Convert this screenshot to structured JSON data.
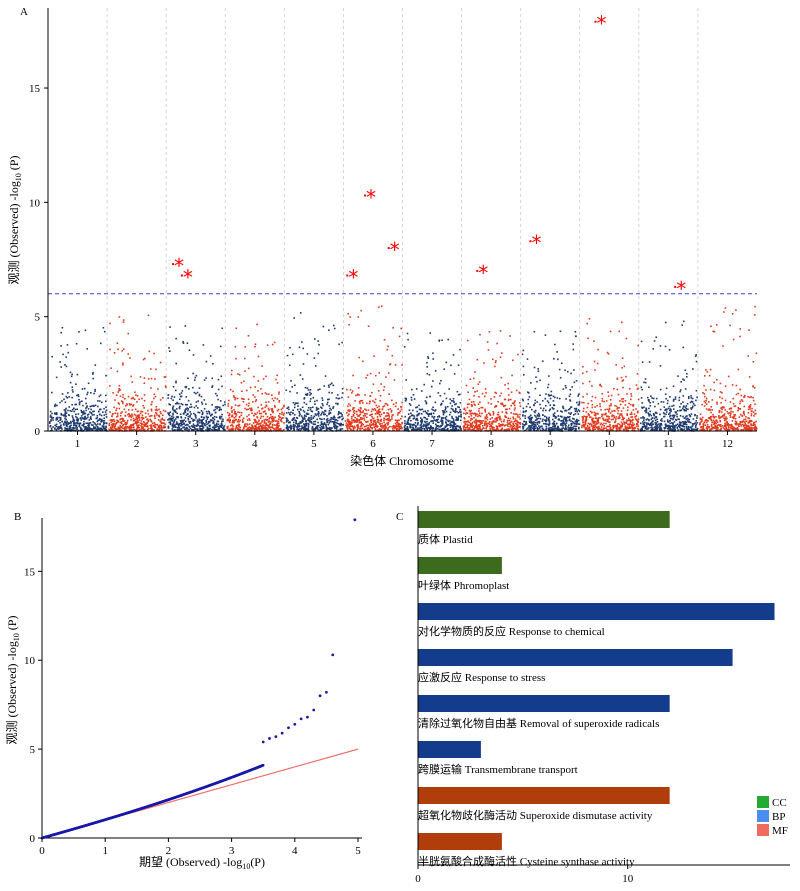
{
  "chart_data": [
    {
      "panel": "A",
      "type": "scatter",
      "subtype": "manhattan",
      "xlabel": "染色体 Chromosome",
      "ylabel": "观测 (Observed) -log10(P)",
      "ylim": [
        0,
        18.5
      ],
      "yticks": [
        0,
        5,
        10,
        15
      ],
      "categories": [
        "1",
        "2",
        "3",
        "4",
        "5",
        "6",
        "7",
        "8",
        "9",
        "10",
        "11",
        "12"
      ],
      "colors": {
        "odd": "#1f3a6e",
        "even": "#e03a1e",
        "threshold": "#3a3af0",
        "significant": "#ff0000"
      },
      "threshold": 6.0,
      "chromosome_peak_values": [
        4.6,
        5.1,
        4.7,
        4.7,
        5.3,
        5.6,
        4.3,
        4.4,
        4.4,
        5.3,
        4.8,
        5.6
      ],
      "significant_snps": [
        {
          "chromosome": "3",
          "value": 7.3
        },
        {
          "chromosome": "3",
          "value": 6.8
        },
        {
          "chromosome": "6",
          "value": 6.8
        },
        {
          "chromosome": "6",
          "value": 10.3
        },
        {
          "chromosome": "6",
          "value": 8.0
        },
        {
          "chromosome": "8",
          "value": 7.0
        },
        {
          "chromosome": "9",
          "value": 8.3
        },
        {
          "chromosome": "10",
          "value": 17.9
        },
        {
          "chromosome": "11",
          "value": 6.3
        }
      ]
    },
    {
      "panel": "B",
      "type": "scatter",
      "subtype": "qq",
      "xlabel": "期望 (Observed) -log10(P)",
      "ylabel": "观测 (Observed) -log10(P)",
      "xlim": [
        0,
        5
      ],
      "ylim": [
        0,
        18
      ],
      "xticks": [
        0,
        1,
        2,
        3,
        4,
        5
      ],
      "yticks": [
        0,
        5,
        10,
        15
      ],
      "colors": {
        "points": "#1a1aa8",
        "reference": "#f07070"
      },
      "tail_points": [
        {
          "x": 3.5,
          "y": 5.4
        },
        {
          "x": 3.6,
          "y": 5.6
        },
        {
          "x": 3.7,
          "y": 5.7
        },
        {
          "x": 3.8,
          "y": 5.9
        },
        {
          "x": 3.9,
          "y": 6.2
        },
        {
          "x": 4.0,
          "y": 6.4
        },
        {
          "x": 4.1,
          "y": 6.7
        },
        {
          "x": 4.2,
          "y": 6.8
        },
        {
          "x": 4.3,
          "y": 7.2
        },
        {
          "x": 4.4,
          "y": 8.0
        },
        {
          "x": 4.5,
          "y": 8.2
        },
        {
          "x": 4.6,
          "y": 10.3
        },
        {
          "x": 4.95,
          "y": 17.9
        }
      ]
    },
    {
      "panel": "C",
      "type": "bar",
      "orientation": "horizontal",
      "xlim": [
        0,
        17.5
      ],
      "xticks": [
        0,
        10
      ],
      "categories": [
        "质体 Plastid",
        "叶绿体 Phromoplast",
        "对化学物质的反应 Response to chemical",
        "应激反应 Response to stress",
        "清除过氧化物自由基 Removal of superoxide radicals",
        "跨膜运输 Transmembrane transport",
        "超氧化物歧化酶活动 Superoxide dismutase activity",
        "半胱氨酸合成酶活性 Cysteine synthase activity"
      ],
      "values": [
        12,
        4,
        17,
        15,
        12,
        3,
        12,
        4
      ],
      "groups": [
        "CC",
        "CC",
        "BP",
        "BP",
        "BP",
        "BP",
        "MF",
        "MF"
      ],
      "bar_colors": {
        "CC": "#3d6b1e",
        "BP": "#143c8c",
        "MF": "#b03d0a"
      },
      "legend": [
        {
          "label": "CC",
          "color": "#22aa33"
        },
        {
          "label": "BP",
          "color": "#4a8cf0"
        },
        {
          "label": "MF",
          "color": "#f06a60"
        }
      ]
    }
  ]
}
